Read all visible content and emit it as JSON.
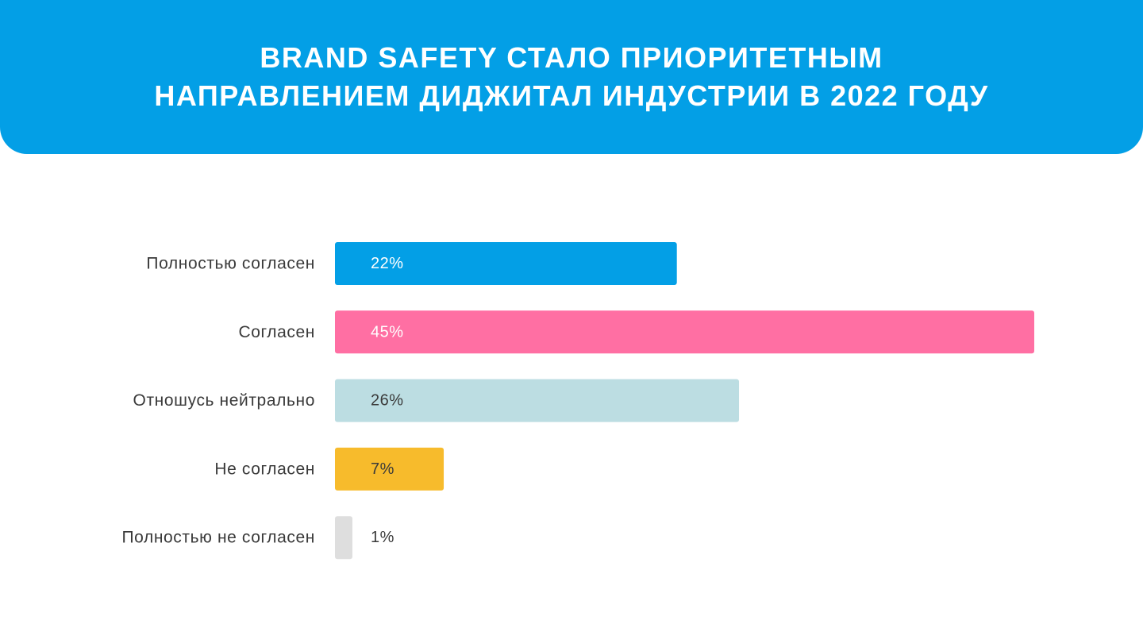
{
  "header": {
    "title_line1": "BRAND SAFETY СТАЛО ПРИОРИТЕТНЫМ",
    "title_line2": "НАПРАВЛЕНИЕМ ДИДЖИТАЛ ИНДУСТРИИ В 2022 ГОДУ",
    "background_color": "#039fe6"
  },
  "chart_data": {
    "type": "bar",
    "orientation": "horizontal",
    "title": "BRAND SAFETY СТАЛО ПРИОРИТЕТНЫМ НАПРАВЛЕНИЕМ ДИДЖИТАЛ ИНДУСТРИИ В 2022 ГОДУ",
    "categories": [
      "Полностью согласен",
      "Согласен",
      "Отношусь нейтрально",
      "Не согласен",
      "Полностью не согласен"
    ],
    "values": [
      22,
      45,
      26,
      7,
      1
    ],
    "labels": [
      "22%",
      "45%",
      "26%",
      "7%",
      "1%"
    ],
    "colors": [
      "#039fe6",
      "#ff6fa3",
      "#bcdde2",
      "#f7bb2c",
      "#dedede"
    ],
    "label_colors": [
      "#ffffff",
      "#ffffff",
      "#3a3a3a",
      "#3a3a3a",
      "#3a3a3a"
    ],
    "xlabel": "",
    "ylabel": "",
    "xlim": [
      0,
      45
    ],
    "grid": false,
    "legend": "none"
  }
}
